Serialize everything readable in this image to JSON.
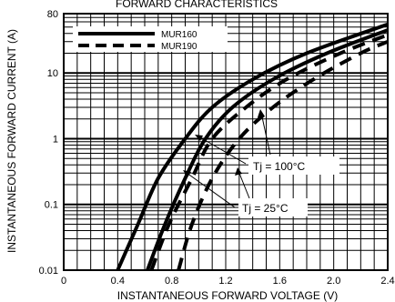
{
  "chart_data": {
    "type": "line",
    "title": "FORWARD CHARACTERISTICS",
    "xlabel": "INSTANTANEOUS FORWARD VOLTAGE (V)",
    "ylabel": "INSTANTANEOUS FORWARD CURRENT (A)",
    "xlim": [
      0,
      2.4
    ],
    "ylim": [
      0.01,
      80
    ],
    "yscale": "log",
    "grid": true,
    "legend_position": "top-left",
    "x_ticks": [
      "0",
      "0.4",
      "0.8",
      "1.2",
      "1.6",
      "2.0",
      "2.4"
    ],
    "y_ticks": [
      "0.01",
      "0.1",
      "1",
      "10",
      "80"
    ],
    "series": [
      {
        "name": "MUR160",
        "style": "solid",
        "curves": [
          {
            "points": [
              [
                0.4,
                0.01
              ],
              [
                0.55,
                0.05
              ],
              [
                0.7,
                0.25
              ],
              [
                0.9,
                1.0
              ],
              [
                1.1,
                3.0
              ],
              [
                1.4,
                8.0
              ],
              [
                1.8,
                20.0
              ],
              [
                2.4,
                55.0
              ]
            ]
          },
          {
            "points": [
              [
                0.62,
                0.01
              ],
              [
                0.75,
                0.05
              ],
              [
                0.9,
                0.25
              ],
              [
                1.05,
                1.0
              ],
              [
                1.25,
                3.0
              ],
              [
                1.55,
                8.0
              ],
              [
                1.95,
                20.0
              ],
              [
                2.4,
                45.0
              ]
            ]
          }
        ]
      },
      {
        "name": "MUR190",
        "style": "dashed",
        "curves": [
          {
            "points": [
              [
                0.65,
                0.01
              ],
              [
                0.78,
                0.05
              ],
              [
                0.95,
                0.25
              ],
              [
                1.1,
                1.0
              ],
              [
                1.35,
                3.0
              ],
              [
                1.65,
                8.0
              ],
              [
                2.05,
                20.0
              ],
              [
                2.4,
                38.0
              ]
            ]
          },
          {
            "points": [
              [
                0.85,
                0.01
              ],
              [
                0.95,
                0.05
              ],
              [
                1.1,
                0.25
              ],
              [
                1.3,
                1.0
              ],
              [
                1.55,
                3.0
              ],
              [
                1.85,
                8.0
              ],
              [
                2.2,
                20.0
              ],
              [
                2.4,
                30.0
              ]
            ]
          }
        ]
      }
    ],
    "annotations": [
      {
        "text": "Tj = 100°C"
      },
      {
        "text": "Tj = 25°C"
      }
    ]
  }
}
